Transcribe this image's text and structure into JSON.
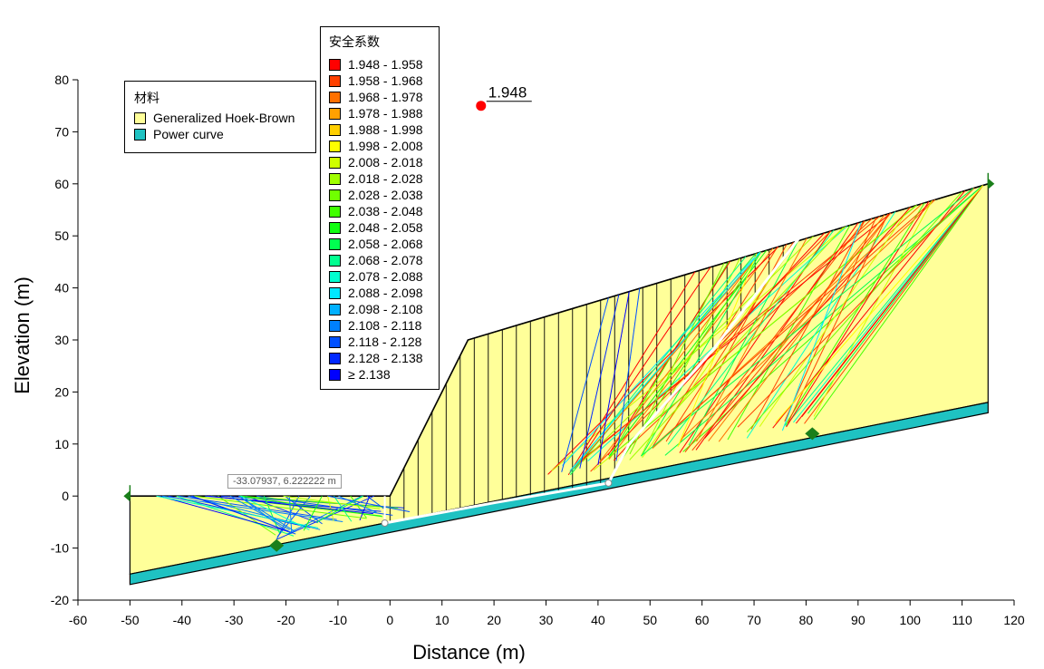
{
  "chart_data": {
    "type": "scatter",
    "xlabel": "Distance (m)",
    "ylabel": "Elevation (m)",
    "xlim": [
      -60,
      120
    ],
    "ylim": [
      -20,
      80
    ],
    "x_ticks": [
      -60,
      -50,
      -40,
      -30,
      -20,
      -10,
      0,
      10,
      20,
      30,
      40,
      50,
      60,
      70,
      80,
      90,
      100,
      110,
      120
    ],
    "y_ticks": [
      -20,
      -10,
      0,
      10,
      20,
      30,
      40,
      50,
      60,
      70,
      80
    ],
    "grid": false,
    "slope_surface": [
      [
        -50,
        0
      ],
      [
        0,
        0
      ],
      [
        15,
        30
      ],
      [
        115,
        60
      ]
    ],
    "material_boundary": [
      [
        -50,
        -15
      ],
      [
        115,
        18
      ]
    ],
    "model_bottom": [
      [
        -50,
        -17
      ],
      [
        115,
        16
      ]
    ],
    "left_edge_x": -50,
    "right_edge_x": 115,
    "critical_center": {
      "x": 17.5,
      "y": 75,
      "label": "1.948",
      "color": "#ff0000"
    },
    "slip_surface_entry_exit": [
      [
        -21.8,
        -9.5
      ],
      [
        81.2,
        12
      ]
    ],
    "material_legend": {
      "title": "材料",
      "items": [
        {
          "name": "Generalized Hoek-Brown",
          "color": "#ffff99"
        },
        {
          "name": "Power curve",
          "color": "#1fc2c2"
        }
      ]
    },
    "fos_legend": {
      "title": "安全系数",
      "items": [
        {
          "label": "1.948 - 1.958",
          "color": "#ff0000"
        },
        {
          "label": "1.958 - 1.968",
          "color": "#ff4000"
        },
        {
          "label": "1.968 - 1.978",
          "color": "#ff7000"
        },
        {
          "label": "1.978 - 1.988",
          "color": "#ffa000"
        },
        {
          "label": "1.988 - 1.998",
          "color": "#ffcf00"
        },
        {
          "label": "1.998 - 2.008",
          "color": "#ffff00"
        },
        {
          "label": "2.008 - 2.018",
          "color": "#cfff00"
        },
        {
          "label": "2.018 - 2.028",
          "color": "#a0ff00"
        },
        {
          "label": "2.028 - 2.038",
          "color": "#70ff00"
        },
        {
          "label": "2.038 - 2.048",
          "color": "#40ff00"
        },
        {
          "label": "2.048 - 2.058",
          "color": "#10ff10"
        },
        {
          "label": "2.058 - 2.068",
          "color": "#00ff50"
        },
        {
          "label": "2.068 - 2.078",
          "color": "#00ff90"
        },
        {
          "label": "2.078 - 2.088",
          "color": "#00ffd0"
        },
        {
          "label": "2.088 - 2.098",
          "color": "#00e8ff"
        },
        {
          "label": "2.098 - 2.108",
          "color": "#00b0ff"
        },
        {
          "label": "2.108 - 2.118",
          "color": "#0080ff"
        },
        {
          "label": "2.118 - 2.128",
          "color": "#0050ff"
        },
        {
          "label": "2.128 - 2.138",
          "color": "#0028ff"
        },
        {
          "label": "≥ 2.138",
          "color": "#0000ff"
        }
      ]
    },
    "coordinate_readout": "-33.07937, 6.222222 m"
  }
}
